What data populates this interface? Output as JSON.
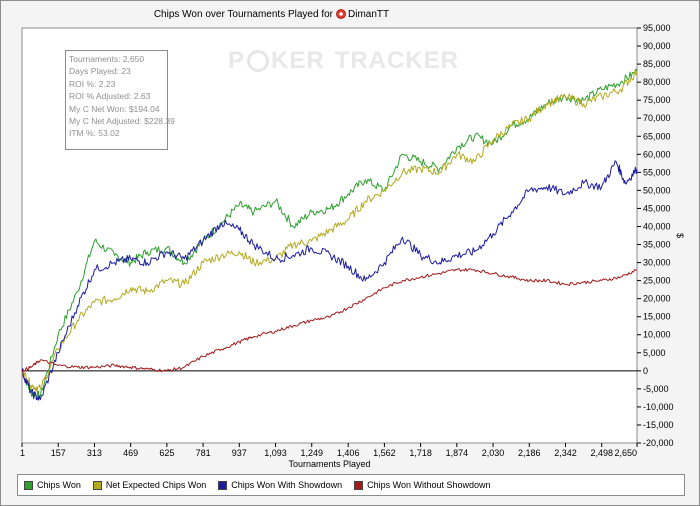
{
  "chart_data": {
    "type": "line",
    "title": "Chips Won over Tournaments Played for",
    "player": "DimanTT",
    "xlabel": "Tournaments Played",
    "ylabel": "$",
    "x_ticks": [
      1,
      157,
      313,
      469,
      625,
      781,
      937,
      1093,
      1249,
      1406,
      1562,
      1718,
      1874,
      2030,
      2186,
      2342,
      2498,
      2650
    ],
    "y_ticks": [
      -20000,
      -15000,
      -10000,
      -5000,
      0,
      5000,
      10000,
      15000,
      20000,
      25000,
      30000,
      35000,
      40000,
      45000,
      50000,
      55000,
      60000,
      65000,
      70000,
      75000,
      80000,
      85000,
      90000,
      95000
    ],
    "y_tick_labels": [
      "-20,000",
      "-15,000",
      "-10,000",
      "-5,000",
      "0",
      "5,000",
      "10,000",
      "15,000",
      "20,000",
      "25,000",
      "30,000",
      "35,000",
      "40,000",
      "45,000",
      "50,000",
      "55,000",
      "60,000",
      "65,000",
      "70,000",
      "75,000",
      "80,000",
      "85,000",
      "90,000",
      "95,000"
    ],
    "xlim": [
      1,
      2650
    ],
    "ylim": [
      -20000,
      95000
    ],
    "legend_position": "bottom",
    "series": [
      {
        "name": "Chips Won",
        "color": "#2ea02e",
        "x": [
          1,
          40,
          80,
          157,
          240,
          313,
          400,
          469,
          540,
          625,
          700,
          781,
          860,
          937,
          1000,
          1093,
          1170,
          1249,
          1330,
          1406,
          1480,
          1562,
          1640,
          1718,
          1800,
          1874,
          1950,
          2030,
          2110,
          2186,
          2260,
          2342,
          2420,
          2498,
          2580,
          2650
        ],
        "y": [
          0,
          -6000,
          -7000,
          10000,
          22000,
          36000,
          32000,
          30000,
          33000,
          34000,
          30000,
          36000,
          41000,
          46000,
          44000,
          47000,
          40000,
          44000,
          45000,
          49000,
          53000,
          50000,
          60000,
          58000,
          56000,
          62000,
          65000,
          63000,
          68000,
          70000,
          74000,
          76000,
          75000,
          78000,
          80000,
          83000
        ]
      },
      {
        "name": "Net Expected Chips Won",
        "color": "#b4aa20",
        "x": [
          1,
          40,
          80,
          157,
          240,
          313,
          400,
          469,
          540,
          625,
          700,
          781,
          860,
          937,
          1000,
          1093,
          1170,
          1249,
          1330,
          1406,
          1480,
          1562,
          1640,
          1718,
          1800,
          1874,
          1950,
          2030,
          2110,
          2186,
          2260,
          2342,
          2420,
          2498,
          2580,
          2650
        ],
        "y": [
          0,
          -4000,
          -5000,
          6000,
          14000,
          19000,
          20000,
          23000,
          22000,
          25000,
          24000,
          30000,
          32000,
          33000,
          30000,
          31000,
          35000,
          36000,
          39000,
          42000,
          47000,
          50000,
          55000,
          56000,
          55000,
          60000,
          58000,
          64000,
          68000,
          70000,
          74000,
          76000,
          74000,
          76000,
          78000,
          83000
        ]
      },
      {
        "name": "Chips Won With Showdown",
        "color": "#1c1ca0",
        "x": [
          1,
          40,
          80,
          157,
          240,
          313,
          400,
          469,
          540,
          625,
          700,
          781,
          860,
          937,
          1000,
          1093,
          1170,
          1249,
          1330,
          1406,
          1480,
          1562,
          1640,
          1718,
          1800,
          1874,
          1950,
          2030,
          2110,
          2186,
          2260,
          2342,
          2420,
          2498,
          2560,
          2600,
          2650
        ],
        "y": [
          0,
          -6000,
          -8000,
          5000,
          18000,
          28000,
          30000,
          31000,
          30000,
          33000,
          31000,
          36000,
          41000,
          39000,
          35000,
          31000,
          32000,
          34000,
          32000,
          29000,
          25000,
          30000,
          37000,
          32000,
          30000,
          32000,
          33000,
          38000,
          44000,
          50000,
          51000,
          49000,
          52000,
          51000,
          58000,
          52000,
          56000
        ]
      },
      {
        "name": "Chips Won Without Showdown",
        "color": "#a01c1c",
        "x": [
          1,
          40,
          80,
          157,
          240,
          313,
          400,
          469,
          540,
          625,
          700,
          781,
          860,
          937,
          1000,
          1093,
          1170,
          1249,
          1330,
          1406,
          1480,
          1562,
          1640,
          1718,
          1800,
          1874,
          1950,
          2030,
          2110,
          2186,
          2260,
          2342,
          2420,
          2498,
          2580,
          2650
        ],
        "y": [
          0,
          1000,
          3000,
          1500,
          1000,
          1000,
          1500,
          1000,
          500,
          0,
          1000,
          4000,
          6000,
          8000,
          9500,
          11000,
          12500,
          14000,
          15000,
          17500,
          20000,
          23000,
          25000,
          26000,
          27000,
          28000,
          28000,
          27000,
          26000,
          25000,
          25000,
          24000,
          24500,
          25000,
          26000,
          28000
        ]
      }
    ]
  },
  "stats": [
    "Tournaments: 2,650",
    "Days Played: 23",
    "ROI %: 2.23",
    "ROI % Adjusted: 2.63",
    "My C Net Won: $194.04",
    "My C Net Adjusted: $228.39",
    "ITM %: 53.02"
  ],
  "watermark": {
    "part1": "P",
    "part2": "KER",
    "part3": "TRACKER"
  }
}
